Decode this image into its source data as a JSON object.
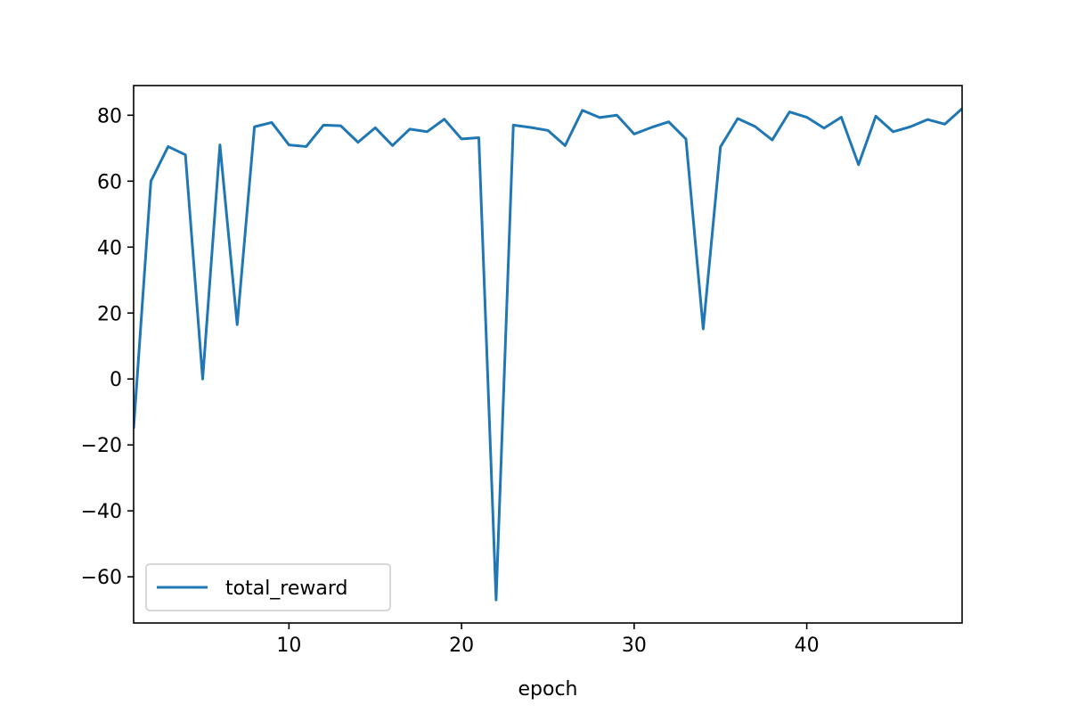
{
  "chart_data": {
    "type": "line",
    "xlabel": "epoch",
    "ylabel": "",
    "xlim": [
      1,
      49
    ],
    "ylim": [
      -74,
      89
    ],
    "xticks": [
      10,
      20,
      30,
      40
    ],
    "yticks": [
      -60,
      -40,
      -20,
      0,
      20,
      40,
      60,
      80
    ],
    "grid": false,
    "legend_position": "lower-left",
    "series": [
      {
        "name": "total_reward",
        "color": "#1f77b4",
        "x": [
          1,
          2,
          3,
          4,
          5,
          6,
          7,
          8,
          9,
          10,
          11,
          12,
          13,
          14,
          15,
          16,
          17,
          18,
          19,
          20,
          21,
          22,
          23,
          24,
          25,
          26,
          27,
          28,
          29,
          30,
          31,
          32,
          33,
          34,
          35,
          36,
          37,
          38,
          39,
          40,
          41,
          42,
          43,
          44,
          45,
          46,
          47,
          48,
          49
        ],
        "y": [
          -15,
          60,
          70.5,
          68,
          0,
          71,
          16.5,
          76.5,
          77.8,
          71,
          70.5,
          77,
          76.8,
          71.8,
          76.2,
          70.8,
          75.8,
          75,
          78.8,
          72.8,
          73.2,
          -67,
          77,
          76.3,
          75.4,
          70.8,
          81.5,
          79.3,
          80,
          74.3,
          76.3,
          78,
          72.8,
          15.2,
          70.4,
          79,
          76.6,
          72.5,
          81,
          79.4,
          76.1,
          79.4,
          65,
          79.7,
          75,
          76.5,
          78.7,
          77.3,
          82
        ]
      }
    ]
  }
}
